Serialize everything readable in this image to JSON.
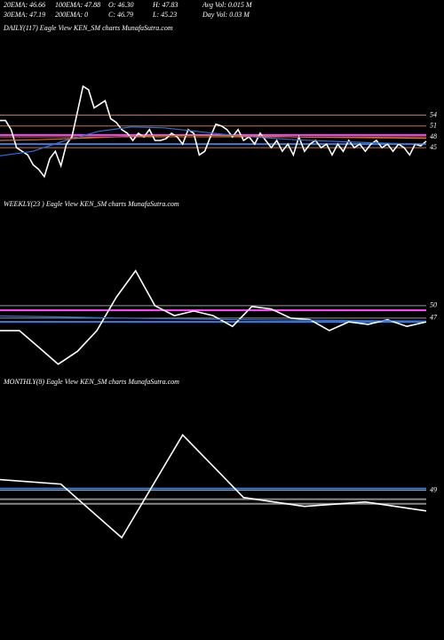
{
  "header": {
    "row1": [
      "20EMA: 46.66",
      "100EMA: 47.88",
      "O: 46.30",
      "H: 47.83",
      "Avg Vol: 0.015 M"
    ],
    "row2": [
      "30EMA: 47.19",
      "200EMA: 0",
      "C: 46.79",
      "L: 45.23",
      "Day Vol: 0.03 M"
    ]
  },
  "chart_data": [
    {
      "type": "line",
      "title": "DAILY(117) Eagle  View  KEN_SM charts MunafaSutra.com",
      "ylim": [
        33,
        76
      ],
      "yticks": [
        54,
        51,
        48,
        45
      ],
      "grid": true,
      "grid_color": "#c87533",
      "hlines": [
        {
          "value": 48.5,
          "color": "#ff40ff"
        },
        {
          "value": 46,
          "color": "#3a7be0"
        }
      ],
      "series": [
        {
          "color": "#ffffff",
          "values": [
            52.5,
            52.5,
            50,
            45,
            44,
            43,
            40.25,
            39,
            37,
            42,
            44,
            40,
            46,
            48,
            55,
            62,
            61,
            56,
            57,
            58,
            53,
            52,
            50,
            49,
            47,
            49,
            48,
            50,
            47,
            47,
            47.5,
            49,
            48,
            46,
            50,
            49,
            43,
            44,
            48,
            51.5,
            51,
            50,
            48,
            50,
            47,
            48,
            46,
            49,
            47,
            45,
            47,
            44,
            46,
            43,
            48,
            44,
            46,
            47,
            45,
            46,
            43,
            46,
            44,
            47,
            45,
            46,
            44,
            46,
            47,
            45,
            46,
            44,
            46,
            45,
            43,
            46,
            45.5,
            46.8
          ]
        },
        {
          "color": "#2e6fd8",
          "values": [
            42.75,
            44,
            47,
            49.5,
            50.75,
            50.5,
            49.5,
            48.5,
            47.8,
            47.2,
            46.8,
            46.5,
            46.2,
            46
          ]
        },
        {
          "color": "#c87533",
          "values": [
            47,
            47.2,
            47.6,
            48,
            48.3,
            48.4,
            48.3,
            48.1,
            47.9,
            47.8,
            47.7,
            47.6
          ]
        }
      ]
    },
    {
      "type": "line",
      "title": "WEEKLY(23   ) Eagle  View  KEN_SM charts MunafaSutra.com",
      "ylim": [
        33.7,
        73.3
      ],
      "yticks": [
        50,
        47
      ],
      "grid": true,
      "grid_color": "#999999",
      "hlines": [
        {
          "value": 48.9,
          "color": "#ff40ff"
        },
        {
          "value": 46.1,
          "color": "#3a7be0"
        }
      ],
      "series": [
        {
          "color": "#ffffff",
          "values": [
            44,
            44,
            40,
            35.9,
            39,
            44,
            52,
            58.4,
            50,
            47.6,
            48.7,
            47.6,
            45,
            49.8,
            49.2,
            47,
            46.6,
            44,
            46.1,
            45.5,
            46.6,
            45,
            46.1
          ]
        },
        {
          "color": "#2e6fd8",
          "values": [
            47.5,
            47.3,
            47,
            46.8,
            46.6,
            46.5,
            46.4,
            46.3
          ]
        }
      ]
    },
    {
      "type": "line",
      "title": "MONTHLY(8) Eagle  View  KEN_SM charts MunafaSutra.com",
      "ylim": [
        32,
        78
      ],
      "yticks": [
        49
      ],
      "grid": true,
      "grid_color": "#aaaaaa",
      "hlines": [
        {
          "value": 49.5,
          "color": "#3a7be0"
        },
        {
          "value": 46.5,
          "color": "#888888"
        },
        {
          "value": 45.25,
          "color": "#888888"
        }
      ],
      "series": [
        {
          "color": "#ffffff",
          "values": [
            52,
            50.75,
            35.75,
            64.5,
            47,
            44.5,
            45.75,
            43.25
          ]
        }
      ]
    }
  ]
}
